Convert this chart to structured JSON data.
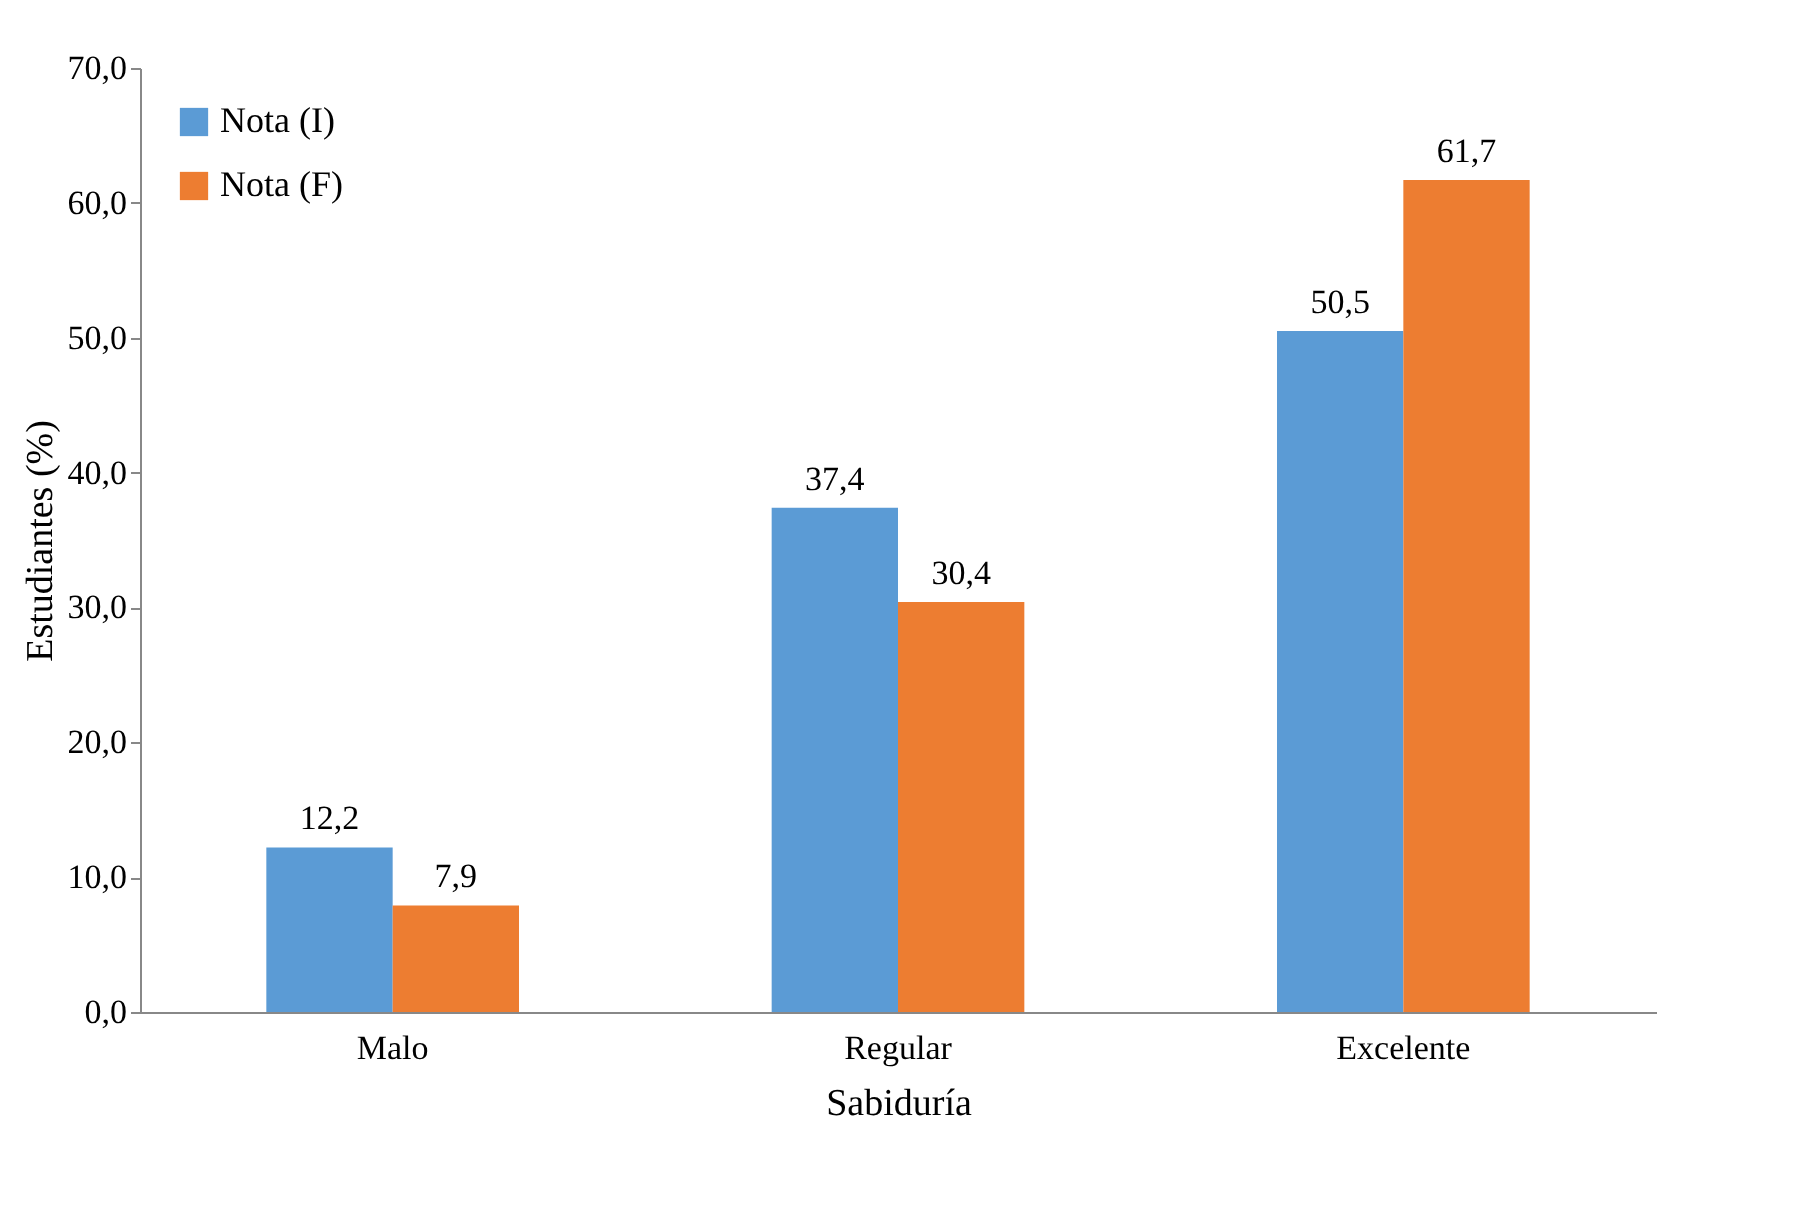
{
  "chart_data": {
    "type": "bar",
    "xlabel": "Sabiduría",
    "ylabel": "Estudiantes (%)",
    "categories": [
      "Malo",
      "Regular",
      "Excelente"
    ],
    "series": [
      {
        "name": "Nota (I)",
        "color": "#5b9bd5",
        "values": [
          12.2,
          37.4,
          50.5
        ],
        "value_labels": [
          "12,2",
          "37,4",
          "50,5"
        ]
      },
      {
        "name": "Nota (F)",
        "color": "#ed7d31",
        "values": [
          7.9,
          30.4,
          61.7
        ],
        "value_labels": [
          "7,9",
          "30,4",
          "61,7"
        ]
      }
    ],
    "ylim": [
      0,
      70
    ],
    "yticks": [
      {
        "value": 0,
        "label": "0,0"
      },
      {
        "value": 10,
        "label": "10,0"
      },
      {
        "value": 20,
        "label": "20,0"
      },
      {
        "value": 30,
        "label": "30,0"
      },
      {
        "value": 40,
        "label": "40,0"
      },
      {
        "value": 50,
        "label": "50,0"
      },
      {
        "value": 60,
        "label": "60,0"
      },
      {
        "value": 70,
        "label": "70,0"
      }
    ],
    "grid": false,
    "legend": "top left"
  }
}
